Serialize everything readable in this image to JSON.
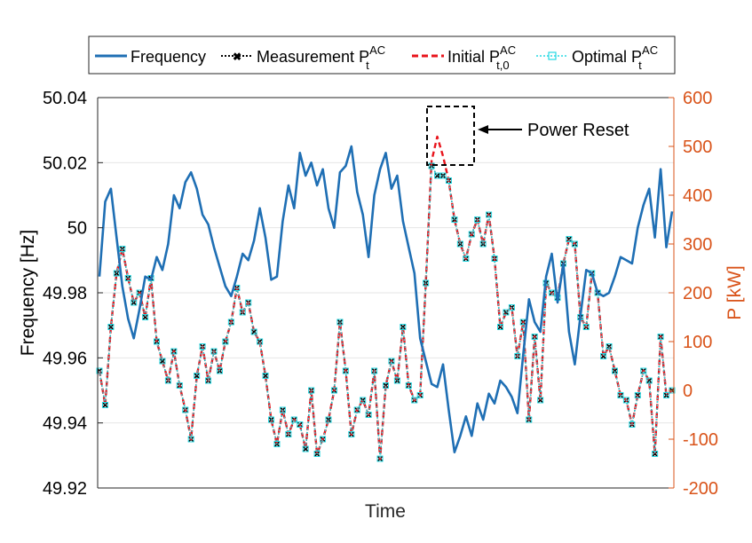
{
  "chart_data": {
    "type": "line",
    "title": "",
    "xlabel": "Time",
    "ylabel_left": "Frequency [Hz]",
    "ylabel_right": "P [kW]",
    "ylim_left": [
      49.92,
      50.04
    ],
    "ylim_right": [
      -200,
      600
    ],
    "yticks_left": [
      "49.92",
      "49.94",
      "49.96",
      "49.98",
      "50",
      "50.02",
      "50.04"
    ],
    "yticks_right": [
      "-200",
      "-100",
      "0",
      "100",
      "200",
      "300",
      "400",
      "500",
      "600"
    ],
    "grid": true,
    "legend_position": "top",
    "annotation": "Power Reset",
    "colors": {
      "frequency": "#1f6fb4",
      "measurement": "#000000",
      "initial": "#e8131b",
      "optimal": "#27d9e3",
      "right_axis": "#d95319"
    },
    "series": [
      {
        "name": "Frequency",
        "axis": "left",
        "x": [
          0,
          1,
          2,
          3,
          4,
          5,
          6,
          7,
          8,
          9,
          10,
          11,
          12,
          13,
          14,
          15,
          16,
          17,
          18,
          19,
          20,
          21,
          22,
          23,
          24,
          25,
          26,
          27,
          28,
          29,
          30,
          31,
          32,
          33,
          34,
          35,
          36,
          37,
          38,
          39,
          40,
          41,
          42,
          43,
          44,
          45,
          46,
          47,
          48,
          49,
          50,
          51,
          52,
          53,
          54,
          55,
          56,
          57,
          58,
          59,
          60,
          61,
          62,
          63,
          64,
          65,
          66,
          67,
          68,
          69,
          70,
          71,
          72,
          73,
          74,
          75,
          76,
          77,
          78,
          79,
          80,
          81,
          82,
          83,
          84,
          85,
          86,
          87,
          88,
          89,
          90,
          91,
          92,
          93,
          94,
          95,
          96,
          97,
          98,
          99,
          100
        ],
        "values": [
          49.985,
          50.008,
          50.012,
          49.997,
          49.982,
          49.972,
          49.966,
          49.975,
          49.985,
          49.984,
          49.991,
          49.987,
          49.995,
          50.01,
          50.006,
          50.014,
          50.017,
          50.012,
          50.004,
          50.001,
          49.994,
          49.988,
          49.982,
          49.979,
          49.985,
          49.992,
          49.99,
          49.996,
          50.006,
          49.997,
          49.984,
          49.985,
          50.002,
          50.013,
          50.006,
          50.023,
          50.016,
          50.02,
          50.013,
          50.018,
          50.006,
          50.0,
          50.017,
          50.019,
          50.025,
          50.011,
          50.004,
          49.991,
          50.01,
          50.018,
          50.023,
          50.012,
          50.016,
          50.002,
          49.994,
          49.986,
          49.966,
          49.959,
          49.952,
          49.951,
          49.958,
          49.944,
          49.931,
          49.936,
          49.942,
          49.936,
          49.946,
          49.941,
          49.949,
          49.946,
          49.953,
          49.951,
          49.948,
          49.943,
          49.961,
          49.978,
          49.971,
          49.968,
          49.985,
          49.992,
          49.977,
          49.989,
          49.968,
          49.958,
          49.973,
          49.987,
          49.986,
          49.98,
          49.979,
          49.98,
          49.985,
          49.991,
          49.99,
          49.989,
          50.0,
          50.007,
          50.012,
          49.997,
          50.018,
          49.994,
          50.005
        ],
        "values_note": "approximate trace read from the plotted line"
      },
      {
        "name": "Measurement",
        "name_sup": "AC",
        "name_sub": "t",
        "axis": "right",
        "x": [
          0,
          1,
          2,
          3,
          4,
          5,
          6,
          7,
          8,
          9,
          10,
          11,
          12,
          13,
          14,
          15,
          16,
          17,
          18,
          19,
          20,
          21,
          22,
          23,
          24,
          25,
          26,
          27,
          28,
          29,
          30,
          31,
          32,
          33,
          34,
          35,
          36,
          37,
          38,
          39,
          40,
          41,
          42,
          43,
          44,
          45,
          46,
          47,
          48,
          49,
          50,
          51,
          52,
          53,
          54,
          55,
          56,
          57,
          58,
          59,
          60,
          61,
          62,
          63,
          64,
          65,
          66,
          67,
          68,
          69,
          70,
          71,
          72,
          73,
          74,
          75,
          76,
          77,
          78,
          79,
          80,
          81,
          82,
          83,
          84,
          85,
          86,
          87,
          88,
          89,
          90,
          91,
          92,
          93,
          94,
          95,
          96,
          97,
          98,
          99,
          100
        ],
        "values": [
          40,
          -30,
          130,
          240,
          290,
          230,
          180,
          200,
          150,
          230,
          100,
          60,
          20,
          80,
          10,
          -40,
          -100,
          30,
          90,
          20,
          80,
          40,
          100,
          140,
          210,
          160,
          180,
          120,
          100,
          30,
          -60,
          -110,
          -40,
          -90,
          -60,
          -70,
          -120,
          0,
          -130,
          -100,
          -60,
          0,
          140,
          40,
          -90,
          -40,
          -20,
          -50,
          40,
          -140,
          10,
          60,
          20,
          130,
          10,
          -20,
          -10,
          220,
          460,
          440,
          440,
          430,
          350,
          300,
          270,
          320,
          350,
          300,
          360,
          270,
          130,
          160,
          170,
          70,
          140,
          -60,
          110,
          -20,
          220,
          200,
          190,
          260,
          310,
          300,
          150,
          130,
          240,
          200,
          70,
          90,
          40,
          -10,
          -20,
          -70,
          -10,
          40,
          20,
          -130,
          110,
          -10,
          0
        ],
        "values_note": "approximate trace read from the plotted markers"
      },
      {
        "name": "Initial",
        "name_sup": "AC",
        "name_sub": "t,0",
        "axis": "right",
        "x": [
          0,
          1,
          2,
          3,
          4,
          5,
          6,
          7,
          8,
          9,
          10,
          11,
          12,
          13,
          14,
          15,
          16,
          17,
          18,
          19,
          20,
          21,
          22,
          23,
          24,
          25,
          26,
          27,
          28,
          29,
          30,
          31,
          32,
          33,
          34,
          35,
          36,
          37,
          38,
          39,
          40,
          41,
          42,
          43,
          44,
          45,
          46,
          47,
          48,
          49,
          50,
          51,
          52,
          53,
          54,
          55,
          56,
          57,
          58,
          59,
          60,
          61,
          62,
          63,
          64,
          65,
          66,
          67,
          68,
          69,
          70,
          71,
          72,
          73,
          74,
          75,
          76,
          77,
          78,
          79,
          80,
          81,
          82,
          83,
          84,
          85,
          86,
          87,
          88,
          89,
          90,
          91,
          92,
          93,
          94,
          95,
          96,
          97,
          98,
          99,
          100
        ],
        "values": [
          40,
          -30,
          130,
          240,
          290,
          230,
          180,
          200,
          150,
          230,
          100,
          60,
          20,
          80,
          10,
          -40,
          -100,
          30,
          90,
          20,
          80,
          40,
          100,
          140,
          210,
          160,
          180,
          120,
          100,
          30,
          -60,
          -110,
          -40,
          -90,
          -60,
          -70,
          -120,
          0,
          -130,
          -100,
          -60,
          0,
          140,
          40,
          -90,
          -40,
          -20,
          -50,
          40,
          -140,
          10,
          60,
          20,
          130,
          10,
          -20,
          -10,
          220,
          470,
          520,
          480,
          430,
          350,
          300,
          270,
          320,
          350,
          300,
          360,
          270,
          130,
          160,
          170,
          70,
          140,
          -60,
          110,
          -20,
          220,
          200,
          190,
          260,
          310,
          300,
          150,
          130,
          240,
          200,
          70,
          90,
          40,
          -10,
          -20,
          -70,
          -10,
          40,
          20,
          -130,
          110,
          -10,
          0
        ],
        "values_note": "approximate; deviates from measurement only near the Power Reset box"
      },
      {
        "name": "Optimal",
        "name_sup": "AC",
        "name_sub": "t",
        "axis": "right",
        "x": [
          0,
          1,
          2,
          3,
          4,
          5,
          6,
          7,
          8,
          9,
          10,
          11,
          12,
          13,
          14,
          15,
          16,
          17,
          18,
          19,
          20,
          21,
          22,
          23,
          24,
          25,
          26,
          27,
          28,
          29,
          30,
          31,
          32,
          33,
          34,
          35,
          36,
          37,
          38,
          39,
          40,
          41,
          42,
          43,
          44,
          45,
          46,
          47,
          48,
          49,
          50,
          51,
          52,
          53,
          54,
          55,
          56,
          57,
          58,
          59,
          60,
          61,
          62,
          63,
          64,
          65,
          66,
          67,
          68,
          69,
          70,
          71,
          72,
          73,
          74,
          75,
          76,
          77,
          78,
          79,
          80,
          81,
          82,
          83,
          84,
          85,
          86,
          87,
          88,
          89,
          90,
          91,
          92,
          93,
          94,
          95,
          96,
          97,
          98,
          99,
          100
        ],
        "values": [
          40,
          -30,
          130,
          240,
          290,
          230,
          180,
          200,
          150,
          230,
          100,
          60,
          20,
          80,
          10,
          -40,
          -100,
          30,
          90,
          20,
          80,
          40,
          100,
          140,
          210,
          160,
          180,
          120,
          100,
          30,
          -60,
          -110,
          -40,
          -90,
          -60,
          -70,
          -120,
          0,
          -130,
          -100,
          -60,
          0,
          140,
          40,
          -90,
          -40,
          -20,
          -50,
          40,
          -140,
          10,
          60,
          20,
          130,
          10,
          -20,
          -10,
          220,
          460,
          440,
          440,
          430,
          350,
          300,
          270,
          320,
          350,
          300,
          360,
          270,
          130,
          160,
          170,
          70,
          140,
          -60,
          110,
          -20,
          220,
          200,
          190,
          260,
          310,
          300,
          150,
          130,
          240,
          200,
          70,
          90,
          40,
          -10,
          -20,
          -70,
          -10,
          40,
          20,
          -130,
          110,
          -10,
          0
        ],
        "values_note": "approximate; overlaps measurement trace"
      }
    ]
  }
}
